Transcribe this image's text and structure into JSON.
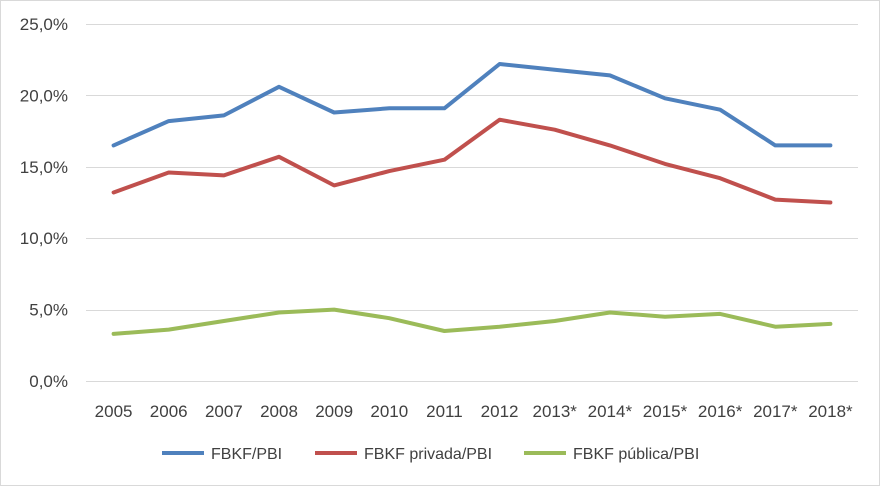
{
  "chart_data": {
    "type": "line",
    "categories": [
      "2005",
      "2006",
      "2007",
      "2008",
      "2009",
      "2010",
      "2011",
      "2012",
      "2013*",
      "2014*",
      "2015*",
      "2016*",
      "2017*",
      "2018*"
    ],
    "ylim": [
      0,
      25
    ],
    "yticks": [
      0,
      5,
      10,
      15,
      20,
      25
    ],
    "ytick_labels": [
      "0,0%",
      "5,0%",
      "10,0%",
      "15,0%",
      "20,0%",
      "25,0%"
    ],
    "grid": true,
    "legend_position": "bottom",
    "series": [
      {
        "name": "FBKF/PBI",
        "color": "#4f81bd",
        "values": [
          16.5,
          18.2,
          18.6,
          20.6,
          18.8,
          19.1,
          19.1,
          22.2,
          21.8,
          21.4,
          19.8,
          19.0,
          16.5,
          16.5
        ]
      },
      {
        "name": "FBKF privada/PBI",
        "color": "#c0504d",
        "values": [
          13.2,
          14.6,
          14.4,
          15.7,
          13.7,
          14.7,
          15.5,
          18.3,
          17.6,
          16.5,
          15.2,
          14.2,
          12.7,
          12.5
        ]
      },
      {
        "name": "FBKF pública/PBI",
        "color": "#9bbb59",
        "values": [
          3.3,
          3.6,
          4.2,
          4.8,
          5.0,
          4.4,
          3.5,
          3.8,
          4.2,
          4.8,
          4.5,
          4.7,
          3.8,
          4.0
        ]
      }
    ]
  }
}
